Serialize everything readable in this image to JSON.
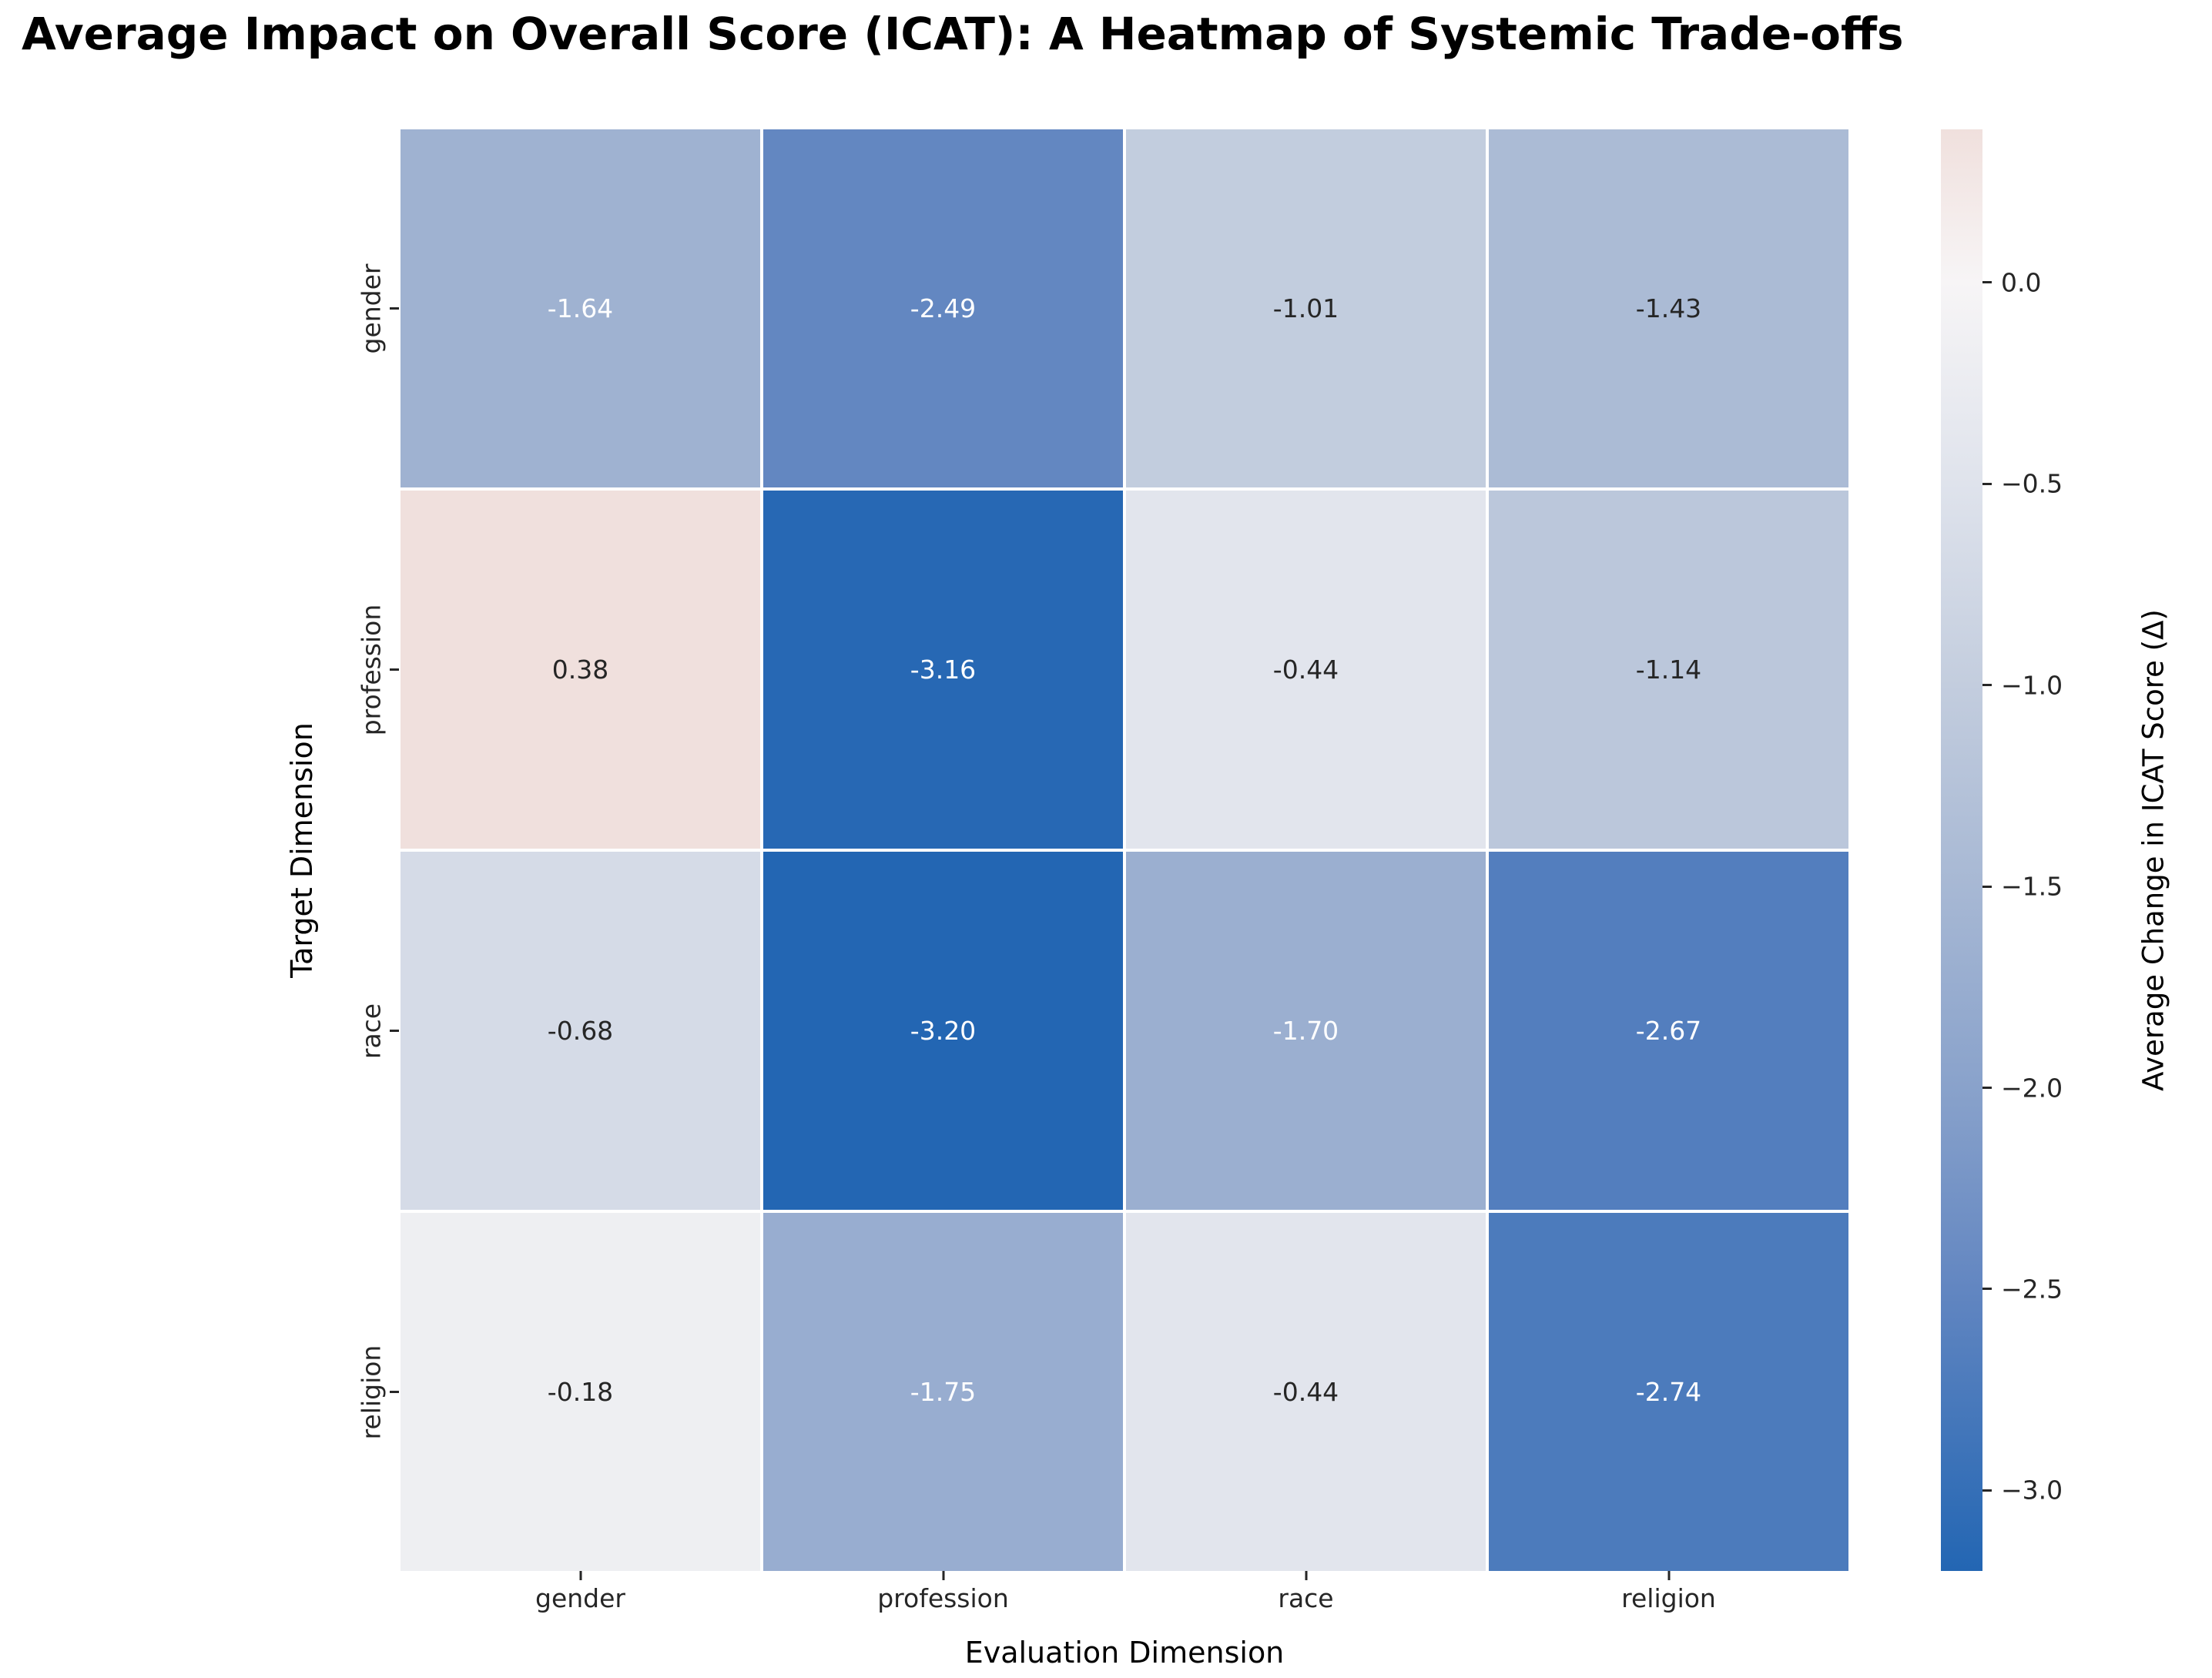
{
  "chart_data": {
    "type": "heatmap",
    "title": "Average Impact on Overall Score (ICAT): A Heatmap of Systemic Trade-offs",
    "xlabel": "Evaluation Dimension",
    "ylabel": "Target Dimension",
    "x_categories": [
      "gender",
      "profession",
      "race",
      "religion"
    ],
    "y_categories": [
      "gender",
      "profession",
      "race",
      "religion"
    ],
    "values": [
      [
        -1.64,
        -2.49,
        -1.01,
        -1.43
      ],
      [
        0.38,
        -3.16,
        -0.44,
        -1.14
      ],
      [
        -0.68,
        -3.2,
        -1.7,
        -2.67
      ],
      [
        -0.18,
        -1.75,
        -0.44,
        -2.74
      ]
    ],
    "annotation_decimals": 2,
    "grid": false,
    "cell_gap_color": "#ffffff",
    "colorbar": {
      "label": "Average Change in ICAT Score (Δ)",
      "position": "right",
      "tick_labels": [
        "0.0",
        "−0.5",
        "−1.0",
        "−1.5",
        "−2.0",
        "−2.5",
        "−3.0"
      ],
      "tick_values": [
        0.0,
        -0.5,
        -1.0,
        -1.5,
        -2.0,
        -2.5,
        -3.0
      ],
      "vmin": -3.2,
      "vmax": 0.38
    },
    "colormap_stops": [
      {
        "v": 0.38,
        "color": "#f0e0dd"
      },
      {
        "v": 0.0,
        "color": "#f7f5f6"
      },
      {
        "v": -0.5,
        "color": "#dfe3ec"
      },
      {
        "v": -1.0,
        "color": "#c3cdde"
      },
      {
        "v": -1.5,
        "color": "#a7b8d4"
      },
      {
        "v": -2.0,
        "color": "#89a2cb"
      },
      {
        "v": -2.5,
        "color": "#6286c1"
      },
      {
        "v": -3.2,
        "color": "#2366b3"
      }
    ],
    "annotation_colors": {
      "light": "#ffffff",
      "dark": "#262626",
      "white_text_threshold": -1.55
    }
  }
}
